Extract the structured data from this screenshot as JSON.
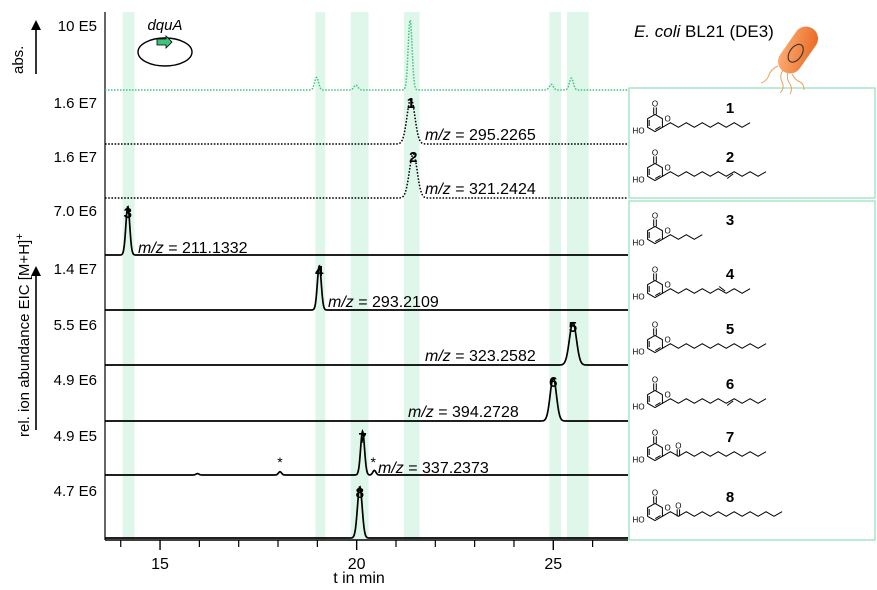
{
  "chart_data": {
    "type": "line",
    "xlabel": "t in min",
    "ylabel_left": "rel. ion abundance EIC [M+H]",
    "ylabel_superscript": "+",
    "abs_label": "abs.",
    "xlim": [
      13.6,
      26.9
    ],
    "xticks_major": [
      15,
      20,
      25
    ],
    "xticks_minor": [
      14,
      16,
      17,
      18,
      19,
      21,
      22,
      23,
      24,
      26
    ],
    "highlight_bands": [
      [
        14.05,
        14.35
      ],
      [
        18.95,
        19.2
      ],
      [
        19.85,
        20.3
      ],
      [
        21.2,
        21.6
      ],
      [
        24.9,
        25.2
      ],
      [
        25.35,
        25.9
      ]
    ],
    "gene_label": "dquA",
    "host_label_italic": "E. coli",
    "host_label_rest": " BL21 (DE3)",
    "abs_trace": {
      "scale_label": "10 E5",
      "color": "#3cc47c",
      "peaks": [
        {
          "t": 18.98,
          "h": 0.18
        },
        {
          "t": 19.98,
          "h": 0.07
        },
        {
          "t": 21.36,
          "h": 1.0
        },
        {
          "t": 24.95,
          "h": 0.08
        },
        {
          "t": 25.46,
          "h": 0.17
        }
      ]
    },
    "traces": [
      {
        "id": "1",
        "scale_label": "1.6 E7",
        "mz_italic": "m/z",
        "mz_value": " = 295.2265",
        "style": "dotted",
        "peak_t": 21.38,
        "peak_h": 0.95,
        "width": 0.1
      },
      {
        "id": "2",
        "scale_label": "1.6 E7",
        "mz_italic": "m/z",
        "mz_value": " = 321.2424",
        "style": "dotted",
        "peak_t": 21.44,
        "peak_h": 0.92,
        "width": 0.1
      },
      {
        "id": "3",
        "scale_label": "7.0 E6",
        "mz_italic": "m/z",
        "mz_value": " = 211.1332",
        "style": "solid",
        "peak_t": 14.18,
        "peak_h": 0.95,
        "width": 0.05
      },
      {
        "id": "4",
        "scale_label": "1.4 E7",
        "mz_italic": "m/z",
        "mz_value": " = 293.2109",
        "style": "solid",
        "peak_t": 19.05,
        "peak_h": 0.92,
        "width": 0.05
      },
      {
        "id": "5",
        "scale_label": "5.5 E6",
        "mz_italic": "m/z",
        "mz_value": " = 323.2582",
        "style": "solid",
        "peak_t": 25.5,
        "peak_h": 0.9,
        "width": 0.09
      },
      {
        "id": "6",
        "scale_label": "4.9 E6",
        "mz_italic": "m/z",
        "mz_value": " = 394.2728",
        "style": "solid",
        "peak_t": 25.0,
        "peak_h": 0.9,
        "width": 0.08
      },
      {
        "id": "7",
        "scale_label": "4.9 E5",
        "mz_italic": "m/z",
        "mz_value": " = 337.2373",
        "style": "solid",
        "peak_t": 20.15,
        "peak_h": 0.95,
        "width": 0.05,
        "minor_peaks": [
          {
            "t": 15.95,
            "h": 0.03
          },
          {
            "t": 18.05,
            "h": 0.07
          },
          {
            "t": 20.45,
            "h": 0.1
          }
        ],
        "asterisks": [
          {
            "t": 18.05
          },
          {
            "t": 20.42
          }
        ]
      },
      {
        "id": "8",
        "scale_label": "4.7 E6",
        "mz_italic": "m/z",
        "mz_value": "",
        "style": "solid",
        "peak_t": 20.08,
        "peak_h": 0.95,
        "width": 0.06
      }
    ],
    "compounds": [
      {
        "id": "1",
        "chain_len": 11,
        "cis": null,
        "keto": false
      },
      {
        "id": "2",
        "chain_len": 13,
        "cis": 8,
        "keto": false
      },
      {
        "id": "3",
        "chain_len": 5,
        "cis": null,
        "keto": false
      },
      {
        "id": "4",
        "chain_len": 11,
        "cis": 7,
        "keto": false
      },
      {
        "id": "5",
        "chain_len": 13,
        "cis": null,
        "keto": false
      },
      {
        "id": "6",
        "chain_len": 13,
        "cis": 8,
        "keto": false
      },
      {
        "id": "7",
        "chain_len": 12,
        "cis": null,
        "keto": true
      },
      {
        "id": "8",
        "chain_len": 14,
        "cis": null,
        "keto": true
      }
    ]
  }
}
